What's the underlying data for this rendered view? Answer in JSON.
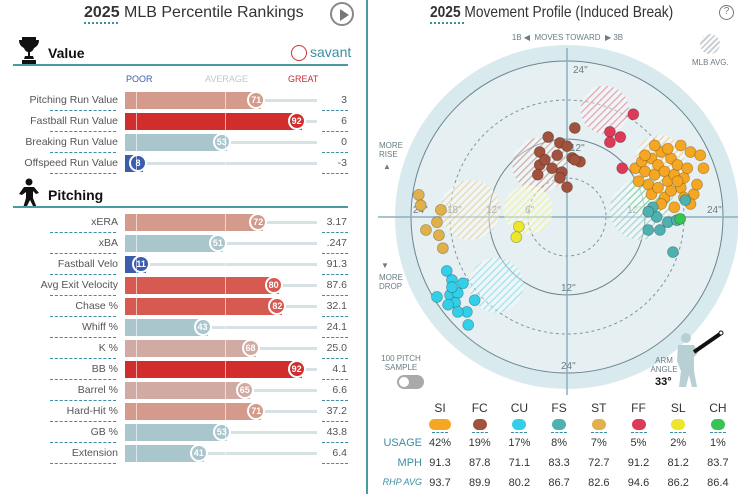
{
  "left": {
    "title_year": "2025",
    "title_rest": " MLB Percentile Rankings",
    "play_icon": "play-icon",
    "value_section": {
      "label": "Value",
      "icon": "trophy-icon",
      "brand": "savant",
      "scale": {
        "poor": "POOR",
        "average": "AVERAGE",
        "great": "GREAT"
      },
      "rows": [
        {
          "label": "Pitching Run Value",
          "percentile": 71,
          "value": "3"
        },
        {
          "label": "Fastball Run Value",
          "percentile": 92,
          "value": "6"
        },
        {
          "label": "Breaking Run Value",
          "percentile": 53,
          "value": "0"
        },
        {
          "label": "Offspeed Run Value",
          "percentile": 8,
          "value": "-3"
        }
      ]
    },
    "pitching_section": {
      "label": "Pitching",
      "icon": "pitcher-icon",
      "rows": [
        {
          "label": "xERA",
          "percentile": 72,
          "value": "3.17"
        },
        {
          "label": "xBA",
          "percentile": 51,
          "value": ".247"
        },
        {
          "label": "Fastball Velo",
          "percentile": 11,
          "value": "91.3"
        },
        {
          "label": "Avg Exit Velocity",
          "percentile": 80,
          "value": "87.6"
        },
        {
          "label": "Chase %",
          "percentile": 82,
          "value": "32.1"
        },
        {
          "label": "Whiff %",
          "percentile": 43,
          "value": "24.1"
        },
        {
          "label": "K %",
          "percentile": 68,
          "value": "25.0"
        },
        {
          "label": "BB %",
          "percentile": 92,
          "value": "4.1"
        },
        {
          "label": "Barrel %",
          "percentile": 65,
          "value": "6.6"
        },
        {
          "label": "Hard-Hit %",
          "percentile": 71,
          "value": "37.2"
        },
        {
          "label": "GB %",
          "percentile": 53,
          "value": "43.8"
        },
        {
          "label": "Extension",
          "percentile": 41,
          "value": "6.4"
        }
      ]
    }
  },
  "right": {
    "title_year": "2025",
    "title_rest": " Movement Profile (Induced Break)",
    "help": "?",
    "direction": "1B ◀  MOVES TOWARD  ▶ 3B",
    "mlb_avg": "MLB AVG.",
    "more_rise": "MORE RISE",
    "more_drop": "MORE DROP",
    "ring_labels": {
      "top24": "24\"",
      "top12": "12\"",
      "bottom12": "12\"",
      "bottom24": "24\"",
      "left24": "24\"",
      "left18": "18\"",
      "left12": "12\"",
      "left6": "6\"",
      "right12": "12\"",
      "right24": "24\""
    },
    "sample_label": "100 PITCH SAMPLE",
    "sample_toggle": false,
    "arm_angle_label": "ARM ANGLE",
    "arm_angle": "33°",
    "table": {
      "row_labels": {
        "usage": "USAGE",
        "mph": "MPH",
        "rhp": "RHP AVG"
      },
      "pitches": [
        {
          "code": "SI",
          "color": "#f5a623",
          "usage": "42%",
          "mph": "91.3",
          "rhp": "93.7"
        },
        {
          "code": "FC",
          "color": "#a0523d",
          "usage": "19%",
          "mph": "87.8",
          "rhp": "89.9"
        },
        {
          "code": "CU",
          "color": "#33cfe8",
          "usage": "17%",
          "mph": "71.1",
          "rhp": "80.2"
        },
        {
          "code": "FS",
          "color": "#4fb0b0",
          "usage": "8%",
          "mph": "83.3",
          "rhp": "86.7"
        },
        {
          "code": "ST",
          "color": "#e0b14a",
          "usage": "7%",
          "mph": "72.7",
          "rhp": "82.6"
        },
        {
          "code": "FF",
          "color": "#dc3a57",
          "usage": "5%",
          "mph": "91.2",
          "rhp": "94.6"
        },
        {
          "code": "SL",
          "color": "#ece72c",
          "usage": "2%",
          "mph": "81.2",
          "rhp": "86.2"
        },
        {
          "code": "CH",
          "color": "#38c454",
          "usage": "1%",
          "mph": "83.7",
          "rhp": "86.4"
        }
      ]
    }
  },
  "chart_data": {
    "type": "scatter",
    "xlabel": "1B ◀ MOVES TOWARD ▶ 3B",
    "ylabel": "",
    "xlim": [
      -24,
      24
    ],
    "ylim": [
      -24,
      24
    ],
    "units": "inches",
    "series": [
      {
        "name": "SI",
        "points": [
          [
            10.5,
            7.5
          ],
          [
            11.5,
            8.5
          ],
          [
            12,
            7
          ],
          [
            13,
            9
          ],
          [
            13.5,
            6.5
          ],
          [
            14,
            8
          ],
          [
            14.5,
            10
          ],
          [
            15,
            7
          ],
          [
            15.5,
            5.5
          ],
          [
            16,
            9
          ],
          [
            16.5,
            6.5
          ],
          [
            17,
            8
          ],
          [
            17.5,
            4.5
          ],
          [
            18,
            6
          ],
          [
            18.5,
            7.5
          ],
          [
            19,
            10
          ],
          [
            19.5,
            3.5
          ],
          [
            20,
            5
          ],
          [
            21,
            7.5
          ],
          [
            12.5,
            5
          ],
          [
            13,
            3.5
          ],
          [
            14,
            4.5
          ],
          [
            15,
            3
          ],
          [
            16,
            4
          ],
          [
            17,
            5.5
          ],
          [
            18,
            3
          ],
          [
            11,
            5.5
          ],
          [
            14.5,
            2
          ],
          [
            16.5,
            1.5
          ],
          [
            19,
            2
          ],
          [
            20.5,
            9.5
          ],
          [
            15.5,
            10.5
          ],
          [
            17.5,
            11
          ],
          [
            13.5,
            11
          ],
          [
            12,
            9.5
          ]
        ],
        "mlb_avg": [
          14.3,
          8.8
        ]
      },
      {
        "name": "FC",
        "points": [
          [
            1.2,
            13.7
          ],
          [
            -2.9,
            12.3
          ],
          [
            -1.1,
            11.4
          ],
          [
            0,
            10.9
          ],
          [
            -4.2,
            10
          ],
          [
            -1.5,
            9.5
          ],
          [
            0.8,
            9.1
          ],
          [
            2,
            8.5
          ],
          [
            -4.2,
            8
          ],
          [
            -2.3,
            7.5
          ],
          [
            -0.8,
            6.9
          ],
          [
            -4.5,
            6.5
          ],
          [
            -1.1,
            6
          ],
          [
            0,
            4.6
          ],
          [
            -3.4,
            8.8
          ],
          [
            1.2,
            8.8
          ]
        ],
        "mlb_avg": [
          -4.2,
          8
        ]
      },
      {
        "name": "CU",
        "points": [
          [
            -18.5,
            -8.3
          ],
          [
            -17.7,
            -9.7
          ],
          [
            -16,
            -10.2
          ],
          [
            -20,
            -12.3
          ],
          [
            -18,
            -12
          ],
          [
            -16.8,
            -11.7
          ],
          [
            -17.2,
            -13.2
          ],
          [
            -18.3,
            -13.5
          ],
          [
            -14.2,
            -12.8
          ],
          [
            -15.4,
            -14.6
          ],
          [
            -16.8,
            -14.6
          ],
          [
            -15.2,
            -16.6
          ],
          [
            -17.7,
            -10.8
          ]
        ],
        "mlb_avg": [
          -10.9,
          -10.5
        ]
      },
      {
        "name": "FS",
        "points": [
          [
            13.2,
            1.5
          ],
          [
            13.8,
            0
          ],
          [
            15.5,
            -0.8
          ],
          [
            12.5,
            -2
          ],
          [
            14.3,
            -2
          ],
          [
            16.9,
            -0.5
          ],
          [
            16.3,
            -5.4
          ],
          [
            18.2,
            2.6
          ],
          [
            12.5,
            0.8
          ]
        ],
        "mlb_avg": [
          11.2,
          1.1
        ]
      },
      {
        "name": "ST",
        "points": [
          [
            -22.8,
            3.4
          ],
          [
            -22.5,
            1.8
          ],
          [
            -19.4,
            1.1
          ],
          [
            -20,
            -0.8
          ],
          [
            -21.7,
            -2
          ],
          [
            -19.7,
            -2.8
          ],
          [
            -19.1,
            -4.8
          ]
        ],
        "mlb_avg": [
          -14.9,
          1.1
        ]
      },
      {
        "name": "FF",
        "points": [
          [
            10.2,
            15.8
          ],
          [
            6.6,
            13.1
          ],
          [
            8.2,
            12.3
          ],
          [
            6.6,
            11.5
          ],
          [
            8.5,
            7.5
          ]
        ],
        "mlb_avg": [
          5.8,
          16.5
        ]
      },
      {
        "name": "SL",
        "points": [
          [
            -7.4,
            -1.5
          ],
          [
            -7.8,
            -3.1
          ]
        ],
        "mlb_avg": [
          -6,
          1.1
        ]
      },
      {
        "name": "CH",
        "points": [
          [
            17.4,
            -0.3
          ]
        ],
        "mlb_avg": [
          12.8,
          3.4
        ]
      }
    ]
  }
}
